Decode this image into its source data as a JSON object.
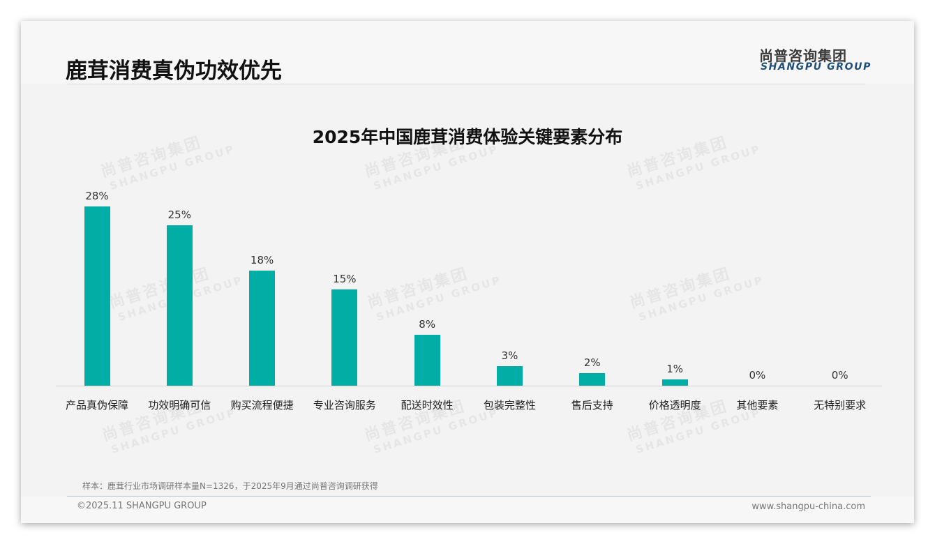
{
  "header": {
    "page_title": "鹿茸消费真伪功效优先",
    "logo_cn": "尚普咨询集团",
    "logo_en": "SHANGPU GROUP"
  },
  "watermark": {
    "cn": "尚普咨询集团",
    "en": "SHANGPU GROUP"
  },
  "colors": {
    "bar": "#00aea6",
    "logo_en": "#1f4e79"
  },
  "chart_data": {
    "type": "bar",
    "title": "2025年中国鹿茸消费体验关键要素分布",
    "xlabel": "",
    "ylabel": "",
    "ylim": [
      0,
      30
    ],
    "grid": false,
    "legend": "none",
    "categories": [
      "产品真伪保障",
      "功效明确可信",
      "购买流程便捷",
      "专业咨询服务",
      "配送时效性",
      "包装完整性",
      "售后支持",
      "价格透明度",
      "其他要素",
      "无特别要求"
    ],
    "values": [
      28,
      25,
      18,
      15,
      8,
      3,
      2,
      1,
      0,
      0
    ],
    "value_labels": [
      "28%",
      "25%",
      "18%",
      "15%",
      "8%",
      "3%",
      "2%",
      "1%",
      "0%",
      "0%"
    ]
  },
  "footer": {
    "note": "样本：鹿茸行业市场调研样本量N=1326，于2025年9月通过尚普咨询调研获得",
    "copyright": "©2025.11 SHANGPU GROUP",
    "website": "www.shangpu-china.com"
  }
}
